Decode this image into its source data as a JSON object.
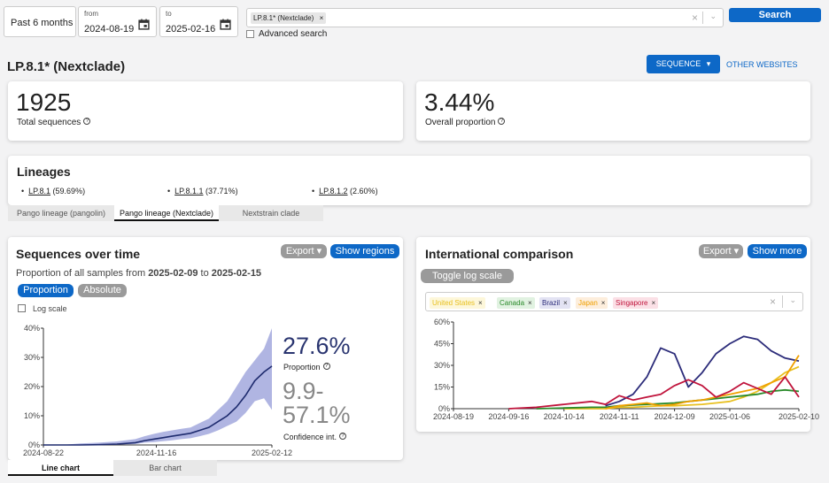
{
  "filters": {
    "period": "Past 6 months",
    "from_label": "from",
    "from_value": "2024-08-19",
    "to_label": "to",
    "to_value": "2025-02-16",
    "lineage_chip": "LP.8.1* (Nextclade)",
    "advanced_label": "Advanced search",
    "search_label": "Search"
  },
  "header": {
    "title": "LP.8.1* (Nextclade)",
    "sequence_button": "SEQUENCE",
    "other_websites": "OTHER WEBSITES"
  },
  "stats": {
    "total_value": "1925",
    "total_label": "Total sequences",
    "proportion_value": "3.44%",
    "proportion_label": "Overall proportion"
  },
  "lineages": {
    "title": "Lineages",
    "items": [
      {
        "name": "LP.8.1",
        "pct": "(59.69%)"
      },
      {
        "name": "LP.8.1.1",
        "pct": "(37.71%)"
      },
      {
        "name": "LP.8.1.2",
        "pct": "(2.60%)"
      }
    ],
    "tabs": [
      "Pango lineage (pangolin)",
      "Pango lineage (Nextclade)",
      "Nextstrain clade"
    ]
  },
  "sequences": {
    "title": "Sequences over time",
    "export_label": "Export",
    "show_regions_label": "Show regions",
    "subtitle_prefix": "Proportion of all samples from",
    "date_from": "2025-02-09",
    "to_word": "to",
    "date_to": "2025-02-15",
    "toggle_proportion": "Proportion",
    "toggle_absolute": "Absolute",
    "log_scale_label": "Log scale",
    "big_value": "27.6%",
    "big_label": "Proportion",
    "ci_line1": "9.9-",
    "ci_line2": "57.1%",
    "ci_label": "Confidence int.",
    "tabs": [
      "Line chart",
      "Bar chart"
    ]
  },
  "international": {
    "title": "International comparison",
    "export_label": "Export",
    "show_more_label": "Show more",
    "toggle_log_label": "Toggle log scale",
    "countries": [
      {
        "name": "United States",
        "color": "#e8c020"
      },
      {
        "name": "Canada",
        "color": "#2a8a2a"
      },
      {
        "name": "Brazil",
        "color": "#2c2c7a"
      },
      {
        "name": "Japan",
        "color": "#f0a000"
      },
      {
        "name": "Singapore",
        "color": "#c0143c"
      }
    ]
  },
  "chart_data": [
    {
      "type": "area",
      "ylabel": "",
      "ylim": [
        0,
        40
      ],
      "yticks": [
        "0%",
        "10%",
        "20%",
        "30%",
        "40%"
      ],
      "xticks": [
        "2024-08-22",
        "2024-11-16",
        "2025-02-12"
      ],
      "series": [
        {
          "x": [
            "2024-08-22",
            "2024-09-05",
            "2024-09-19",
            "2024-10-03",
            "2024-10-17",
            "2024-10-31",
            "2024-11-07",
            "2024-11-14",
            "2024-11-21",
            "2024-11-28",
            "2024-12-05",
            "2024-12-12",
            "2024-12-19",
            "2024-12-26",
            "2025-01-02",
            "2025-01-09",
            "2025-01-16",
            "2025-01-23",
            "2025-01-30",
            "2025-02-06",
            "2025-02-12"
          ],
          "values": [
            0,
            0,
            0,
            0.1,
            0.3,
            0.8,
            1.5,
            2,
            2.5,
            3,
            3.5,
            4,
            5,
            6,
            8,
            10,
            13,
            17,
            22,
            25,
            27
          ],
          "lower": [
            0,
            0,
            0,
            0,
            0.1,
            0.3,
            0.8,
            1,
            1.3,
            1.6,
            2,
            2.3,
            3,
            3.8,
            5,
            6.5,
            8,
            11,
            15,
            16,
            12
          ],
          "upper": [
            0,
            0,
            0.5,
            0.8,
            1.2,
            2,
            3,
            3.8,
            4.5,
            5,
            5.5,
            6,
            7.5,
            9,
            12,
            15,
            20,
            25,
            29,
            33,
            40
          ]
        }
      ]
    },
    {
      "type": "line",
      "ylim": [
        0,
        60
      ],
      "yticks": [
        "0%",
        "15%",
        "30%",
        "45%",
        "60%"
      ],
      "xticks": [
        "2024-08-19",
        "2024-09-16",
        "2024-10-14",
        "2024-11-11",
        "2024-12-09",
        "2025-01-06",
        "2025-02-10"
      ],
      "x": [
        "2024-08-19",
        "2024-09-02",
        "2024-09-16",
        "2024-09-30",
        "2024-10-14",
        "2024-10-28",
        "2024-11-04",
        "2024-11-11",
        "2024-11-18",
        "2024-11-25",
        "2024-12-02",
        "2024-12-09",
        "2024-12-16",
        "2024-12-23",
        "2024-12-30",
        "2025-01-06",
        "2025-01-13",
        "2025-01-20",
        "2025-01-27",
        "2025-02-03",
        "2025-02-10"
      ],
      "series": [
        {
          "name": "United States",
          "values": [
            null,
            null,
            null,
            null,
            0,
            0,
            0,
            1,
            1,
            1.5,
            2,
            2,
            2.5,
            3,
            4,
            5,
            8,
            12,
            18,
            25,
            29
          ]
        },
        {
          "name": "Canada",
          "values": [
            null,
            null,
            null,
            0,
            0.5,
            1,
            1,
            2,
            2.5,
            3,
            3.5,
            4,
            5,
            6,
            7,
            8,
            9,
            10,
            12,
            13,
            12
          ]
        },
        {
          "name": "Brazil",
          "values": [
            null,
            null,
            null,
            null,
            null,
            null,
            2,
            5,
            10,
            22,
            42,
            38,
            15,
            25,
            38,
            45,
            50,
            48,
            40,
            35,
            33
          ]
        },
        {
          "name": "Japan",
          "values": [
            null,
            null,
            null,
            null,
            null,
            null,
            0,
            2,
            3,
            4,
            2,
            3,
            5,
            6,
            8,
            10,
            12,
            14,
            18,
            22,
            37
          ]
        },
        {
          "name": "Singapore",
          "values": [
            null,
            null,
            0,
            1,
            3,
            5,
            3,
            9,
            6,
            8,
            10,
            16,
            20,
            16,
            8,
            12,
            18,
            14,
            10,
            22,
            8
          ]
        }
      ]
    }
  ]
}
